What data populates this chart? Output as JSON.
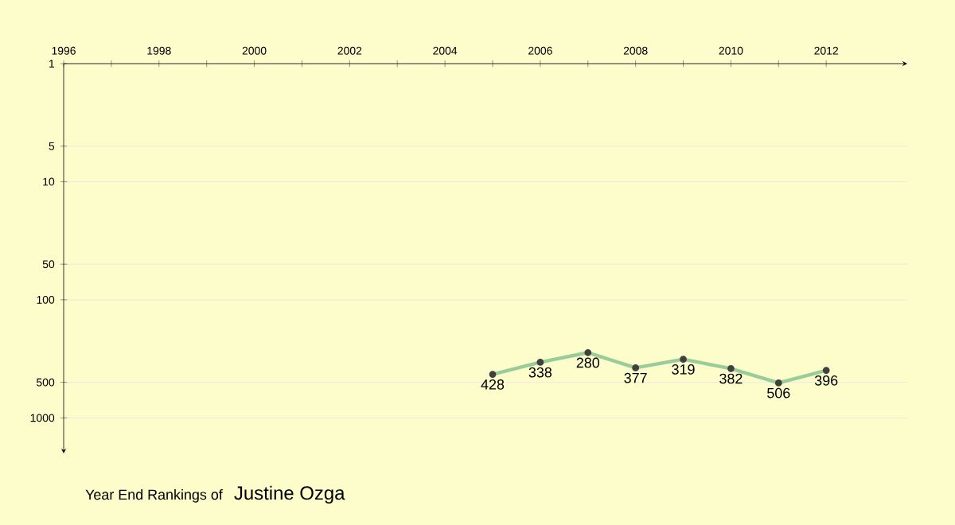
{
  "chart_data": {
    "type": "line",
    "title": "Year End Rankings of",
    "subtitle": "Justine Ozga",
    "x": [
      2005,
      2006,
      2007,
      2008,
      2009,
      2010,
      2011,
      2012
    ],
    "series": [
      {
        "color": "#99cc99",
        "values": [
          428,
          338,
          280,
          377,
          319,
          382,
          506,
          396
        ]
      }
    ],
    "data_labels": true,
    "marker": "circle",
    "log": "y",
    "grid": "y",
    "xlim": [
      1996,
      2013.7
    ],
    "ylim": [
      2000,
      1
    ],
    "xticks": [
      1996,
      {
        "value": 1997,
        "label": null
      },
      1998,
      {
        "value": 1999,
        "label": null
      },
      2000,
      {
        "value": 2001,
        "label": null
      },
      2002,
      {
        "value": 2003,
        "label": null
      },
      2004,
      {
        "value": 2005,
        "label": null
      },
      2006,
      {
        "value": 2007,
        "label": null
      },
      2008,
      {
        "value": 2009,
        "label": null
      },
      2010,
      {
        "value": 2011,
        "label": null
      },
      2012
    ],
    "yticks": [
      1,
      5,
      10,
      50,
      100,
      500,
      1000
    ]
  }
}
